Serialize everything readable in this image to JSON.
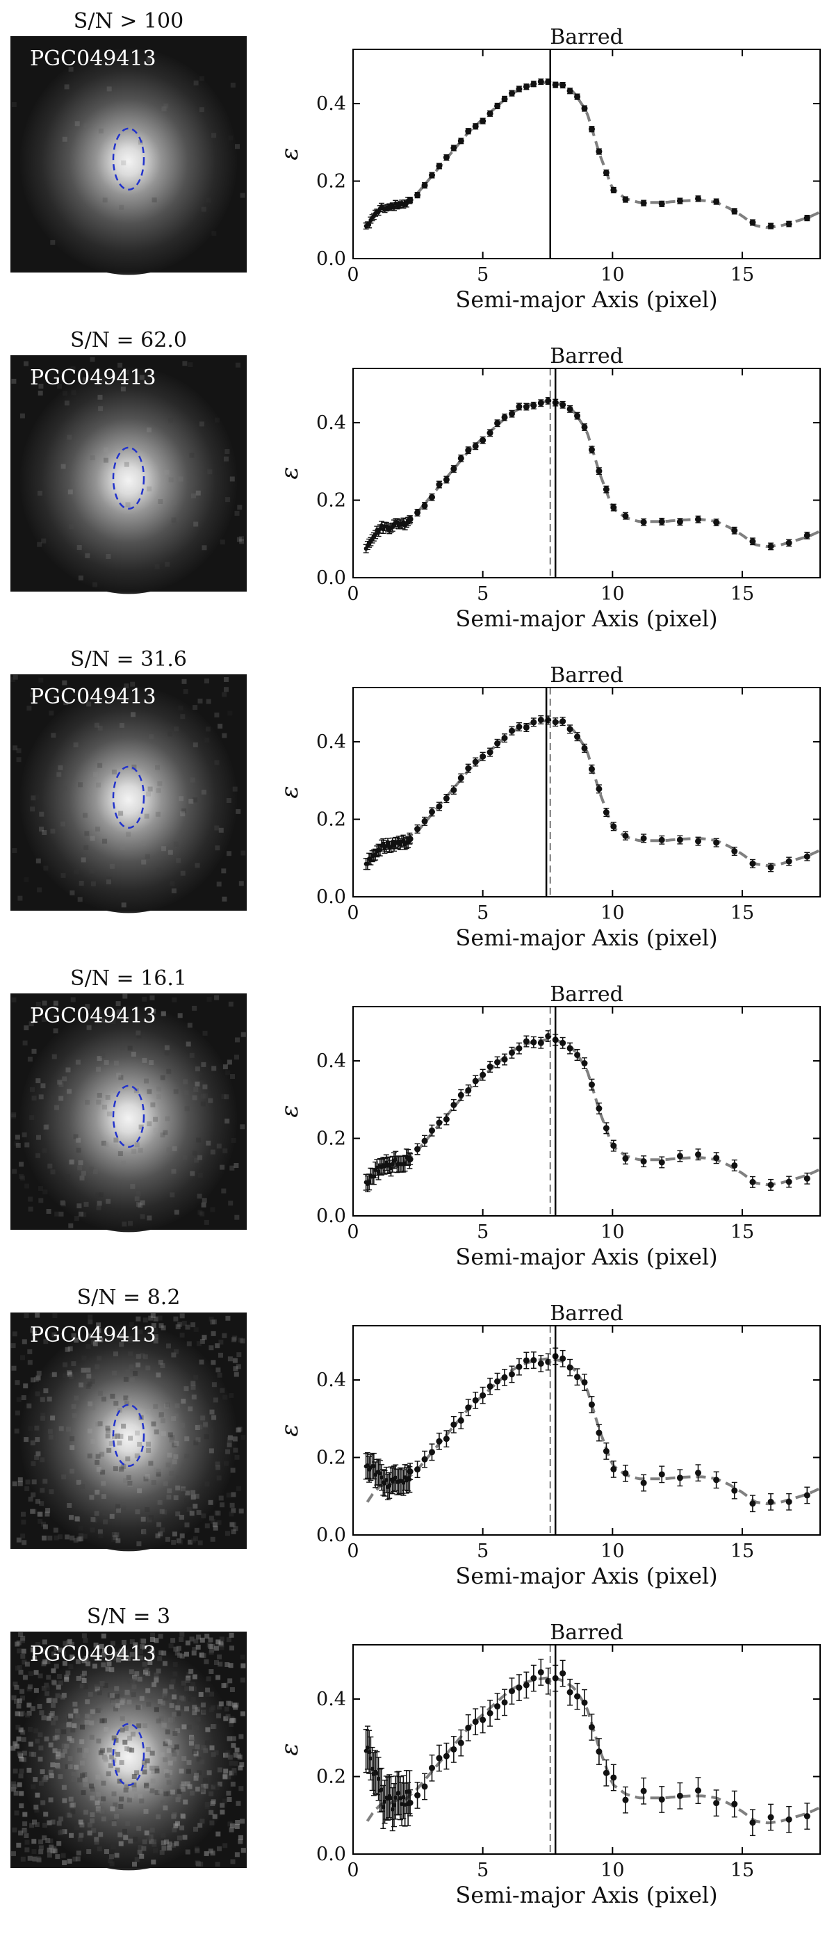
{
  "galaxy_label": "PGC049413",
  "panel_title": "Barred",
  "axis": {
    "xlabel": "Semi-major Axis (pixel)",
    "ylabel": "ε",
    "xlim": [
      0,
      18
    ],
    "ylim": [
      0,
      0.54
    ],
    "xticks": [
      0,
      5,
      10,
      15
    ],
    "yticks": [
      0.0,
      0.2,
      0.4
    ],
    "xtick_labels": [
      "0",
      "5",
      "10",
      "15"
    ],
    "ytick_labels": [
      "0.0",
      "0.2",
      "0.4"
    ]
  },
  "colors": {
    "points": "#111111",
    "model": "#808080",
    "ellipse": "#2233cc",
    "bar_line": "#000000"
  },
  "rows": [
    {
      "sn_label": "S/N > 100",
      "solid_bar_x": 7.6,
      "dashed_bar_x": null,
      "noise": 0.02,
      "point_jitter": 0.005
    },
    {
      "sn_label": "S/N = 62.0",
      "solid_bar_x": 7.8,
      "dashed_bar_x": 7.6,
      "noise": 0.05,
      "point_jitter": 0.006
    },
    {
      "sn_label": "S/N = 31.6",
      "solid_bar_x": 7.45,
      "dashed_bar_x": 7.6,
      "noise": 0.09,
      "point_jitter": 0.007
    },
    {
      "sn_label": "S/N = 16.1",
      "solid_bar_x": 7.8,
      "dashed_bar_x": 7.6,
      "noise": 0.16,
      "point_jitter": 0.009
    },
    {
      "sn_label": "S/N = 8.2",
      "solid_bar_x": 7.8,
      "dashed_bar_x": 7.6,
      "noise": 0.3,
      "point_jitter": 0.012
    },
    {
      "sn_label": "S/N = 3",
      "solid_bar_x": 7.8,
      "dashed_bar_x": 7.6,
      "noise": 0.55,
      "point_jitter": 0.02
    }
  ],
  "chart_data": {
    "type": "scatter",
    "title": "Barred",
    "xlabel": "Semi-major Axis (pixel)",
    "ylabel": "ε",
    "xlim": [
      0,
      18
    ],
    "ylim": [
      0,
      0.54
    ],
    "grid": false,
    "series": [
      {
        "x": [
          0.5,
          0.8,
          1.1,
          1.4,
          1.7,
          2.0,
          2.5,
          3.0,
          3.5,
          4.0,
          4.5,
          5.0,
          5.5,
          6.0,
          6.5,
          7.0,
          7.5,
          8.0,
          8.5,
          9.0,
          9.5,
          10.0,
          10.5,
          11.0,
          11.5,
          12.0,
          12.5,
          13.0,
          13.5,
          14.0,
          14.5,
          15.0,
          15.5,
          16.0,
          16.5,
          17.0,
          17.5,
          18.0
        ],
        "values": [
          0.08,
          0.11,
          0.13,
          0.13,
          0.14,
          0.14,
          0.17,
          0.21,
          0.25,
          0.29,
          0.33,
          0.36,
          0.39,
          0.42,
          0.44,
          0.45,
          0.455,
          0.45,
          0.43,
          0.38,
          0.27,
          0.18,
          0.155,
          0.145,
          0.145,
          0.145,
          0.148,
          0.15,
          0.15,
          0.145,
          0.13,
          0.11,
          0.085,
          0.08,
          0.085,
          0.095,
          0.105,
          0.12
        ]
      }
    ]
  }
}
